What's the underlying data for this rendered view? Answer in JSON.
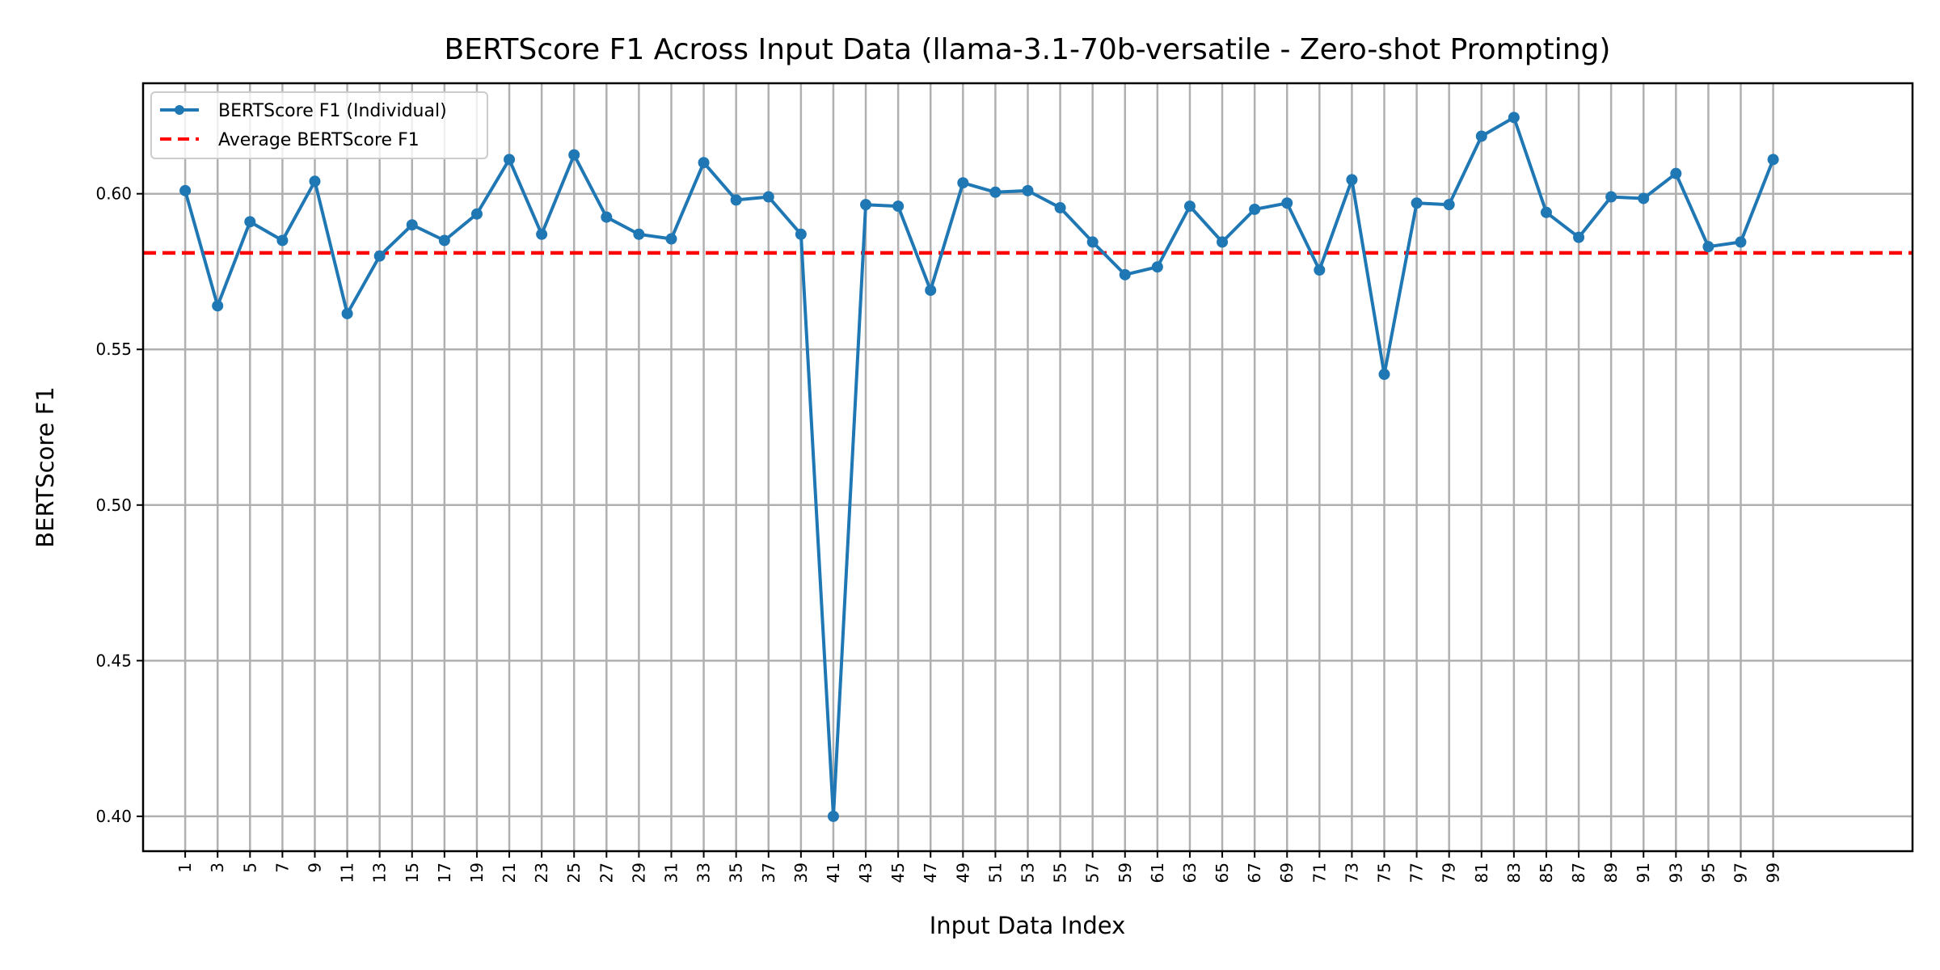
{
  "chart_data": {
    "type": "line",
    "title": "BERTScore F1 Across Input Data (llama-3.1-70b-versatile - Zero-shot Prompting)",
    "xlabel": "Input Data Index",
    "ylabel": "BERTScore F1",
    "xlim": [
      -1.6,
      107.6
    ],
    "ylim": [
      0.3888,
      0.6355
    ],
    "grid": true,
    "legend_position": "top-left",
    "x": [
      1,
      3,
      5,
      7,
      9,
      11,
      13,
      15,
      17,
      19,
      21,
      23,
      25,
      27,
      29,
      31,
      33,
      35,
      37,
      39,
      41,
      43,
      45,
      47,
      49,
      51,
      53,
      55,
      57,
      59,
      61,
      63,
      65,
      67,
      69,
      71,
      73,
      75,
      77,
      79,
      81,
      83,
      85,
      87,
      89,
      91,
      93,
      95,
      97,
      99
    ],
    "xticks": [
      "1",
      "3",
      "5",
      "7",
      "9",
      "11",
      "13",
      "15",
      "17",
      "19",
      "21",
      "23",
      "25",
      "27",
      "29",
      "31",
      "33",
      "35",
      "37",
      "39",
      "41",
      "43",
      "45",
      "47",
      "49",
      "51",
      "53",
      "55",
      "57",
      "59",
      "61",
      "63",
      "65",
      "67",
      "69",
      "71",
      "73",
      "75",
      "77",
      "79",
      "81",
      "83",
      "85",
      "87",
      "89",
      "91",
      "93",
      "95",
      "97",
      "99"
    ],
    "yticks": [
      0.4,
      0.45,
      0.5,
      0.55,
      0.6
    ],
    "ytick_labels": [
      "0.40",
      "0.45",
      "0.50",
      "0.55",
      "0.60"
    ],
    "series": [
      {
        "name": "BERTScore F1 (Individual)",
        "color": "#1f77b4",
        "style": "solid-marker",
        "values": [
          0.601,
          0.564,
          0.591,
          0.585,
          0.604,
          0.5615,
          0.58,
          0.59,
          0.585,
          0.5935,
          0.611,
          0.587,
          0.6125,
          0.5925,
          0.587,
          0.5855,
          0.61,
          0.598,
          0.599,
          0.587,
          0.4,
          0.5965,
          0.596,
          0.569,
          0.6035,
          0.6005,
          0.601,
          0.5955,
          0.5845,
          0.574,
          0.5765,
          0.596,
          0.5845,
          0.595,
          0.597,
          0.5755,
          0.6045,
          0.542,
          0.597,
          0.5965,
          0.6185,
          0.6245,
          0.594,
          0.586,
          0.599,
          0.5985,
          0.6065,
          0.583,
          0.5845,
          0.611
        ]
      },
      {
        "name": "Average BERTScore F1",
        "color": "#ff0000",
        "style": "dashed",
        "value": 0.581
      }
    ]
  }
}
